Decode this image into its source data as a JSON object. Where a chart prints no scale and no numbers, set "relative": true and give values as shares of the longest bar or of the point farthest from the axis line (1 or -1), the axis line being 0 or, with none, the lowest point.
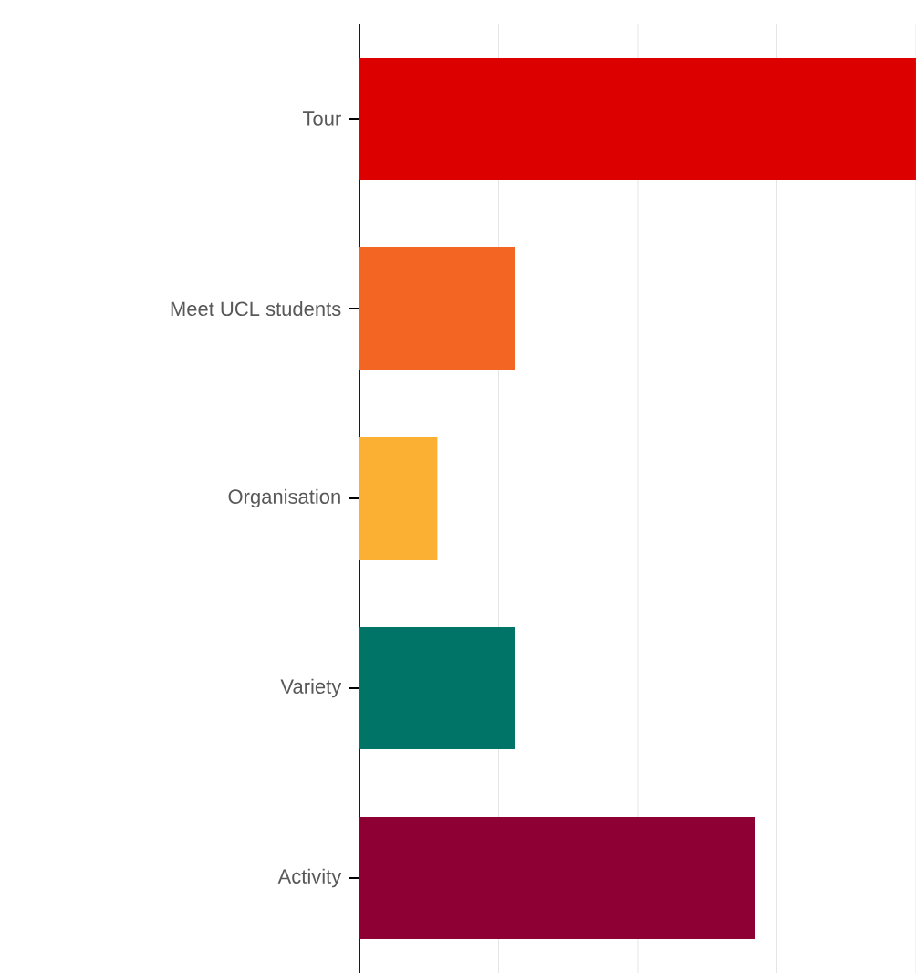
{
  "chart_data": {
    "type": "bar",
    "orientation": "horizontal",
    "relative": true,
    "grid": "x",
    "categories": [
      "Tour",
      "Meet UCL students",
      "Organisation",
      "Variety",
      "Activity"
    ],
    "values": [
      1,
      0.28,
      0.14,
      0.28,
      0.71
    ],
    "colors": [
      "#dd0000",
      "#f26522",
      "#fbb034",
      "#007567",
      "#8e0033"
    ]
  }
}
